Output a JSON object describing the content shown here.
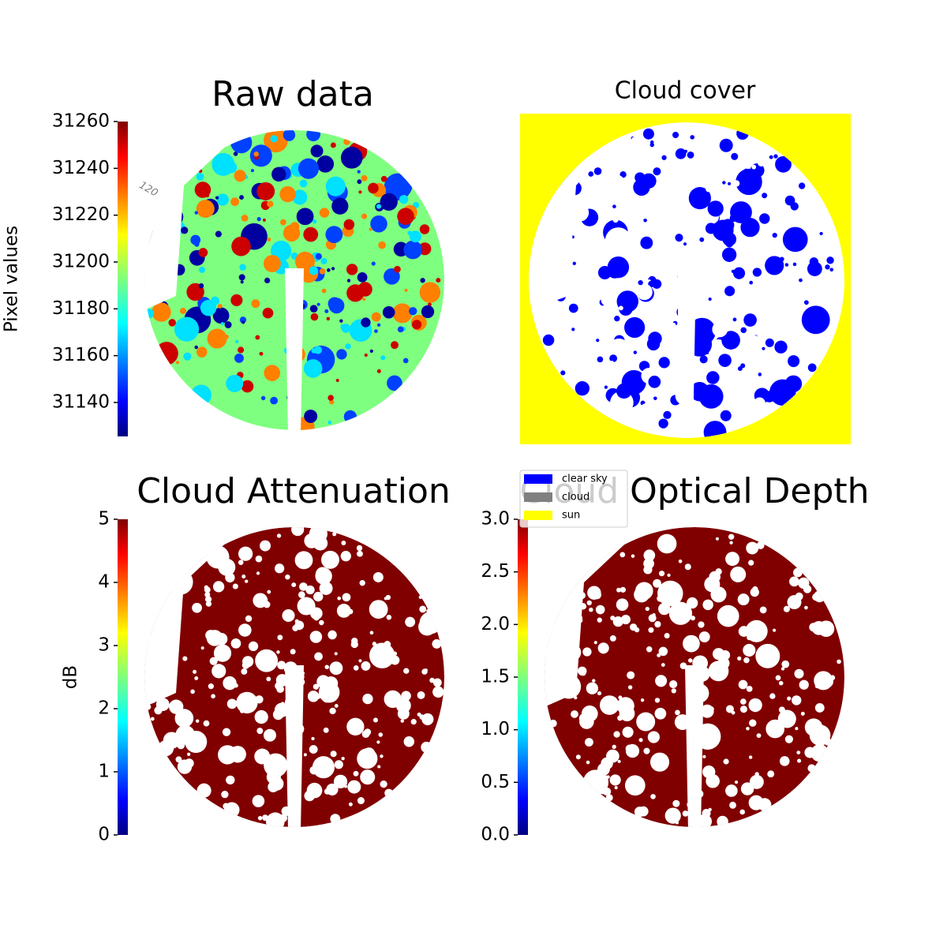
{
  "chart_data": [
    {
      "type": "image",
      "title": "Raw data",
      "annotation": "120",
      "colorbar": {
        "label": "Pixel values",
        "colormap": "jet",
        "ylim": [
          31125.5,
          31260
        ],
        "yticks": [
          31140,
          31160,
          31180,
          31200,
          31220,
          31240,
          31260
        ]
      }
    },
    {
      "type": "image",
      "title": "Cloud cover",
      "series": [
        {
          "name": "clear sky",
          "color": "#0000ff"
        },
        {
          "name": "cloud",
          "color": "#808080"
        },
        {
          "name": "sun",
          "color": "#ffff00"
        }
      ]
    },
    {
      "type": "image",
      "title": "Cloud Attenuation",
      "colorbar": {
        "label": "dB",
        "colormap": "jet",
        "ylim": [
          0,
          5
        ],
        "yticks": [
          0,
          1,
          2,
          3,
          4,
          5
        ]
      }
    },
    {
      "type": "image",
      "title": "Cloud Optical Depth",
      "colorbar": {
        "colormap": "jet",
        "ylim": [
          0,
          3
        ],
        "yticks": [
          {
            "value": 0,
            "label": "0.0"
          },
          {
            "value": 0.5,
            "label": "0.5"
          },
          {
            "value": 1,
            "label": "1.0"
          },
          {
            "value": 1.5,
            "label": "1.5"
          },
          {
            "value": 2,
            "label": "2.0"
          },
          {
            "value": 2.5,
            "label": "2.5"
          },
          {
            "value": 3,
            "label": "3.0"
          }
        ]
      }
    }
  ]
}
